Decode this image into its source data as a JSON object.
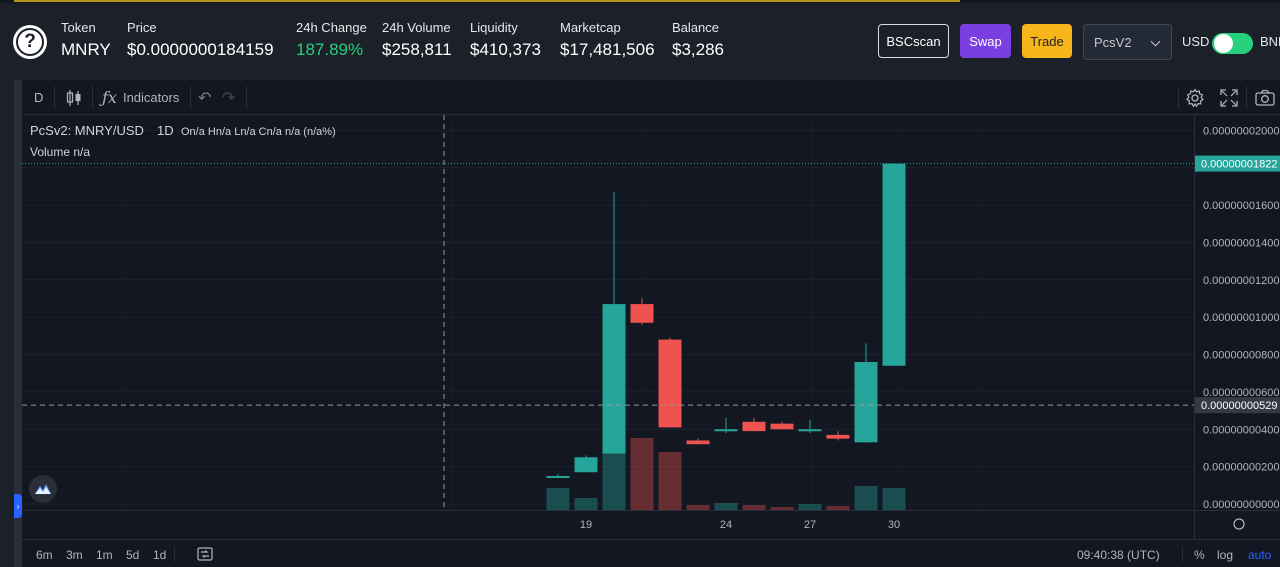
{
  "header": {
    "stats": [
      {
        "label": "Token",
        "value": "MNRY"
      },
      {
        "label": "Price",
        "value": "$0.0000000184159"
      },
      {
        "label": "24h Change",
        "value": "187.89%"
      },
      {
        "label": "24h Volume",
        "value": "$258,811"
      },
      {
        "label": "Liquidity",
        "value": "$410,373"
      },
      {
        "label": "Marketcap",
        "value": "$17,481,506"
      },
      {
        "label": "Balance",
        "value": "$3,286"
      }
    ],
    "buttons": {
      "bscscan": "BSCscan",
      "swap": "Swap",
      "trade": "Trade"
    },
    "exchange_select": "PcsV2",
    "currency_left": "USD",
    "currency_right": "BNB",
    "toggle_on": true,
    "colors": {
      "green": "#26d07c",
      "swap": "#7a3fe0",
      "trade": "#f6b51a"
    }
  },
  "toolbar": {
    "interval": "D",
    "indicators_label": "Indicators"
  },
  "legend": {
    "symbol": "PcSv2: MNRY/USD",
    "timeframe": "1D",
    "ohlc": "On/a  Hn/a  Ln/a  Cn/a  n/a (n/a%)",
    "volume": "Volume  n/a"
  },
  "price_axis": {
    "ticks": [
      "0.00000002000",
      "0.00000001600",
      "0.00000001400",
      "0.00000001200",
      "0.00000001000",
      "0.00000000800",
      "0.00000000600",
      "0.00000000400",
      "0.00000000200",
      "0.00000000000"
    ],
    "last_price_label": "0.00000001822",
    "crosshair_label": "0.00000000529"
  },
  "time_axis": {
    "ticks": [
      "19",
      "24",
      "27",
      "30"
    ]
  },
  "chart_data": {
    "type": "candlestick",
    "ylim": [
      0,
      2.05e-08
    ],
    "candles": [
      {
        "o": 1.5e-09,
        "h": 1.6e-09,
        "l": 1.4e-09,
        "c": 1.5e-09
      },
      {
        "o": 1.7e-09,
        "h": 2.6e-09,
        "l": 1.7e-09,
        "c": 2.5e-09
      },
      {
        "o": 2.7e-09,
        "h": 1.67e-08,
        "l": 2.7e-09,
        "c": 1.07e-08
      },
      {
        "o": 1.07e-08,
        "h": 1.1e-08,
        "l": 9.6e-09,
        "c": 9.7e-09
      },
      {
        "o": 8.8e-09,
        "h": 8.9e-09,
        "l": 4.1e-09,
        "c": 4.1e-09
      },
      {
        "o": 3.4e-09,
        "h": 3.5e-09,
        "l": 3.2e-09,
        "c": 3.2e-09
      },
      {
        "o": 3.9e-09,
        "h": 4.6e-09,
        "l": 3.8e-09,
        "c": 4e-09
      },
      {
        "o": 4.4e-09,
        "h": 4.6e-09,
        "l": 3.9e-09,
        "c": 3.9e-09
      },
      {
        "o": 4.3e-09,
        "h": 4.4e-09,
        "l": 4e-09,
        "c": 4e-09
      },
      {
        "o": 4e-09,
        "h": 4.5e-09,
        "l": 3.8e-09,
        "c": 4e-09
      },
      {
        "o": 3.7e-09,
        "h": 3.9e-09,
        "l": 3.4e-09,
        "c": 3.5e-09
      },
      {
        "o": 3.3e-09,
        "h": 8.6e-09,
        "l": 3.3e-09,
        "c": 7.6e-09
      },
      {
        "o": 7.4e-09,
        "h": 1.822e-08,
        "l": 7.4e-09,
        "c": 1.822e-08
      }
    ],
    "volume_rel": [
      0.22,
      0.12,
      1.0,
      0.72,
      0.58,
      0.05,
      0.07,
      0.05,
      0.03,
      0.06,
      0.04,
      0.24,
      0.22
    ],
    "last_price": 1.822e-08,
    "crosshair_price": 5.29e-09
  },
  "bottom": {
    "ranges": [
      "6m",
      "3m",
      "1m",
      "5d",
      "1d"
    ],
    "clock": "09:40:38 (UTC)",
    "percent": "%",
    "log": "log",
    "auto": "auto"
  }
}
